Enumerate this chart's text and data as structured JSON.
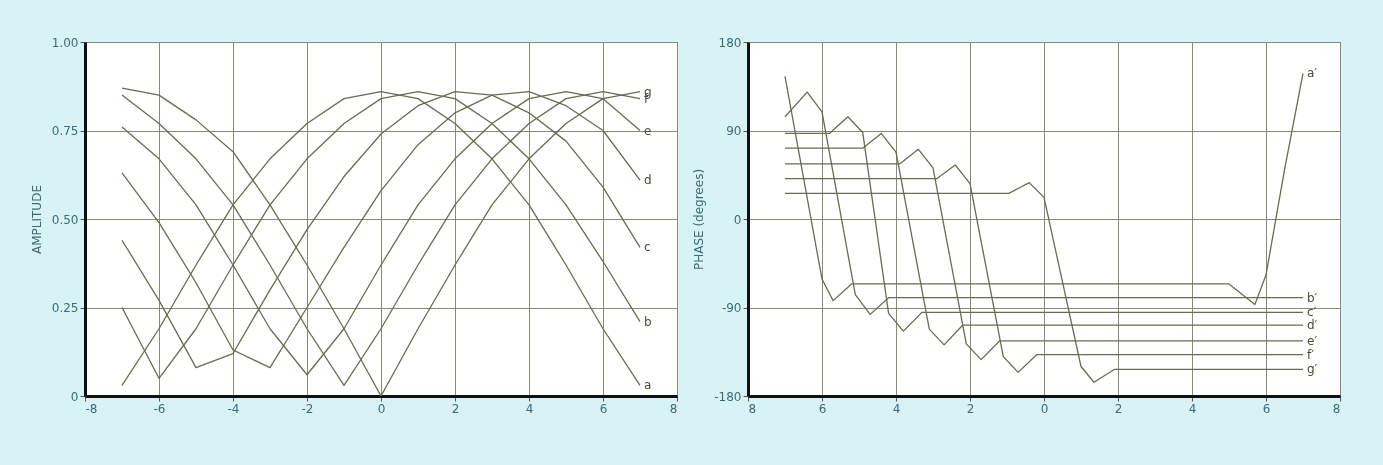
{
  "chart_data": [
    {
      "type": "line",
      "ylabel": "AMPLITUDE",
      "x": [
        -7,
        -6,
        -5,
        -4,
        -3,
        -2,
        -1,
        0,
        1,
        2,
        3,
        4,
        5,
        6,
        7
      ],
      "xlim": [
        -8,
        8
      ],
      "xticks": [
        -8,
        -6,
        -4,
        -2,
        0,
        2,
        4,
        6,
        8
      ],
      "ylim": [
        0,
        1
      ],
      "yticks": [
        0,
        {
          "value": 0.25,
          "label": "0.25"
        },
        {
          "value": 0.5,
          "label": "0.50"
        },
        {
          "value": 0.75,
          "label": "0.75"
        },
        {
          "value": 1,
          "label": "1.00"
        }
      ],
      "grid": true,
      "series": [
        {
          "name": "a",
          "color": "#6b6a52",
          "values": [
            0.03,
            0.19,
            0.37,
            0.54,
            0.67,
            0.77,
            0.84,
            0.86,
            0.84,
            0.77,
            0.67,
            0.54,
            0.37,
            0.19,
            0.03
          ]
        },
        {
          "name": "b",
          "color": "#6b6a52",
          "values": [
            0.25,
            0.05,
            0.19,
            0.37,
            0.54,
            0.67,
            0.77,
            0.84,
            0.86,
            0.84,
            0.77,
            0.67,
            0.54,
            0.38,
            0.21
          ]
        },
        {
          "name": "c",
          "color": "#6b6a52",
          "values": [
            0.44,
            0.27,
            0.08,
            0.12,
            0.3,
            0.47,
            0.62,
            0.74,
            0.82,
            0.86,
            0.85,
            0.8,
            0.72,
            0.59,
            0.42
          ]
        },
        {
          "name": "d",
          "color": "#6b6a52",
          "values": [
            0.63,
            0.49,
            0.32,
            0.13,
            0.08,
            0.25,
            0.42,
            0.58,
            0.71,
            0.8,
            0.85,
            0.86,
            0.82,
            0.75,
            0.61
          ]
        },
        {
          "name": "e",
          "color": "#6b6a52",
          "values": [
            0.76,
            0.67,
            0.54,
            0.37,
            0.19,
            0.06,
            0.19,
            0.37,
            0.54,
            0.67,
            0.77,
            0.84,
            0.86,
            0.84,
            0.75
          ]
        },
        {
          "name": "f",
          "color": "#6b6a52",
          "values": [
            0.85,
            0.77,
            0.67,
            0.54,
            0.37,
            0.19,
            0.03,
            0.19,
            0.37,
            0.54,
            0.67,
            0.77,
            0.84,
            0.86,
            0.84
          ]
        },
        {
          "name": "g",
          "color": "#6b6a52",
          "values": [
            0.87,
            0.85,
            0.78,
            0.69,
            0.54,
            0.37,
            0.19,
            0,
            0.19,
            0.37,
            0.54,
            0.67,
            0.77,
            0.84,
            0.86
          ]
        }
      ]
    },
    {
      "type": "line",
      "ylabel": "PHASE (degrees)",
      "xlim": [
        -8,
        8
      ],
      "xticks": [
        {
          "value": -8,
          "label": "8"
        },
        {
          "value": -6,
          "label": "6"
        },
        {
          "value": -4,
          "label": "4"
        },
        {
          "value": -2,
          "label": "2"
        },
        0,
        2,
        4,
        6,
        8
      ],
      "ylim": [
        -180,
        180
      ],
      "yticks": [
        -180,
        -90,
        0,
        90,
        180
      ],
      "grid": true,
      "series": [
        {
          "name": "a′",
          "color": "#6b6a52",
          "x": [
            -7,
            -6,
            -5.7,
            -5.2,
            5,
            5.7,
            6,
            6.5,
            7
          ],
          "values": [
            145,
            -61,
            -83,
            -66,
            -66,
            -87,
            -57,
            50,
            148
          ]
        },
        {
          "name": "b′",
          "color": "#6b6a52",
          "x": [
            -7,
            -6.4,
            -6,
            -5.1,
            -4.7,
            -4.2,
            7
          ],
          "values": [
            104,
            129,
            109,
            -77,
            -97,
            -80,
            -80
          ]
        },
        {
          "name": "c′",
          "color": "#6b6a52",
          "x": [
            -7,
            -5.8,
            -5.3,
            -4.9,
            -4.2,
            -3.8,
            -3.3,
            7
          ],
          "values": [
            87,
            87,
            104,
            88,
            -96,
            -114,
            -95,
            -95
          ]
        },
        {
          "name": "d′",
          "color": "#6b6a52",
          "x": [
            -7,
            -4.9,
            -4.4,
            -4,
            -3.1,
            -2.7,
            -2.2,
            7
          ],
          "values": [
            72,
            72,
            87,
            68,
            -112,
            -128,
            -108,
            -108
          ]
        },
        {
          "name": "e′",
          "color": "#6b6a52",
          "x": [
            -7,
            -3.9,
            -3.4,
            -3,
            -2.1,
            -1.7,
            -1.2,
            7
          ],
          "values": [
            56,
            56,
            71,
            52,
            -127,
            -143,
            -124,
            -124
          ]
        },
        {
          "name": "f′",
          "color": "#6b6a52",
          "x": [
            -7,
            -2.9,
            -2.4,
            -2,
            -1.1,
            -0.7,
            -0.2,
            7
          ],
          "values": [
            41,
            41,
            55,
            36,
            -140,
            -156,
            -138,
            -138
          ]
        },
        {
          "name": "g′",
          "color": "#6b6a52",
          "x": [
            -7,
            -0.95,
            -0.4,
            0,
            1,
            1.35,
            1.9,
            7
          ],
          "values": [
            26,
            26,
            37,
            22,
            -150,
            -166,
            -153,
            -153
          ]
        }
      ]
    }
  ]
}
